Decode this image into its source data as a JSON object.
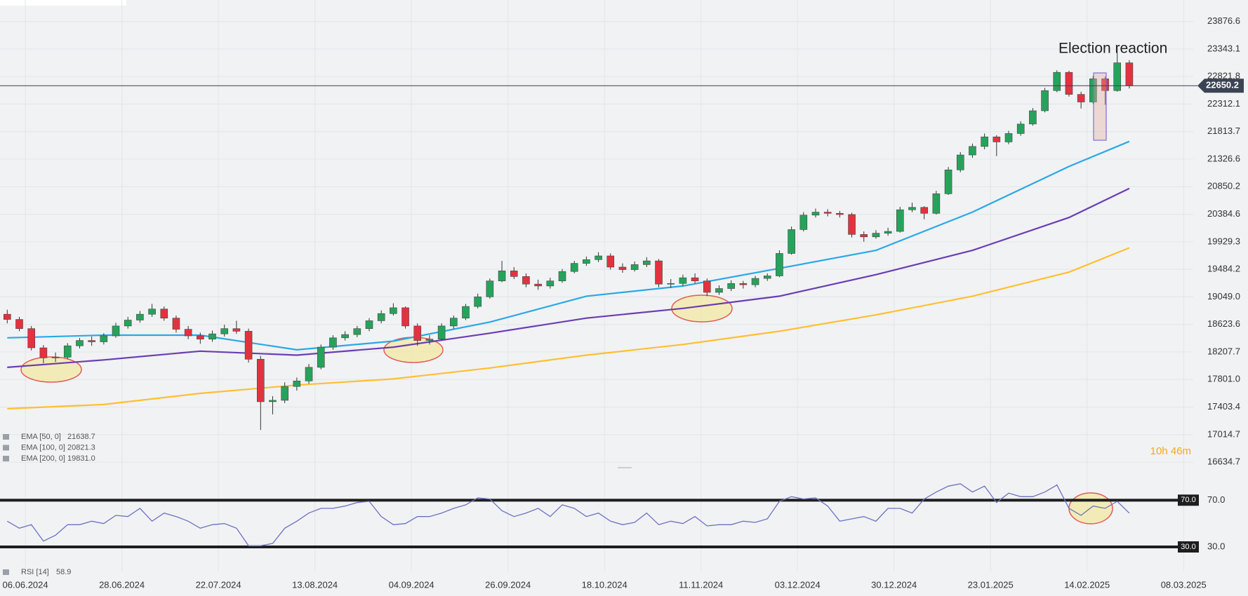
{
  "chart_data": {
    "type": "candlestick",
    "annotation": "Election reaction",
    "log_scale": true,
    "grid": true,
    "ylim": [
      16550,
      24300
    ],
    "yticks": [
      23876.6,
      23343.1,
      22821.8,
      22312.1,
      21813.7,
      21326.6,
      20850.2,
      20384.6,
      19929.3,
      19484.2,
      {
        "value": 19049,
        "label": "19049.0"
      },
      18623.6,
      18207.7,
      {
        "value": 17801,
        "label": "17801.0"
      },
      17403.4,
      17014.7,
      16634.7
    ],
    "xlim": [
      -0.6,
      98.3
    ],
    "xticks": [
      {
        "value": 1.5,
        "label": "06.06.2024"
      },
      {
        "value": 9.5,
        "label": "28.06.2024"
      },
      {
        "value": 17.5,
        "label": "22.07.2024"
      },
      {
        "value": 25.5,
        "label": "13.08.2024"
      },
      {
        "value": 33.5,
        "label": "04.09.2024"
      },
      {
        "value": 41.5,
        "label": "26.09.2024"
      },
      {
        "value": 49.5,
        "label": "18.10.2024"
      },
      {
        "value": 57.5,
        "label": "11.11.2024"
      },
      {
        "value": 65.5,
        "label": "03.12.2024"
      },
      {
        "value": 73.5,
        "label": "30.12.2024"
      },
      {
        "value": 81.5,
        "label": "23.01.2025"
      },
      {
        "value": 89.5,
        "label": "14.02.2025"
      },
      {
        "value": 97.5,
        "label": "08.03.2025"
      }
    ],
    "up_color": "#26a35b",
    "down_color": "#e3323f",
    "last_price": 22650.2,
    "ohlc": [
      [
        18780,
        18850,
        18640,
        18700
      ],
      [
        18700,
        18740,
        18520,
        18560
      ],
      [
        18560,
        18600,
        18230,
        18270
      ],
      [
        18270,
        18310,
        18040,
        18120
      ],
      [
        18120,
        18200,
        18060,
        18130
      ],
      [
        18130,
        18340,
        18100,
        18300
      ],
      [
        18300,
        18420,
        18260,
        18380
      ],
      [
        18380,
        18440,
        18300,
        18360
      ],
      [
        18360,
        18490,
        18320,
        18450
      ],
      [
        18450,
        18650,
        18420,
        18600
      ],
      [
        18600,
        18740,
        18560,
        18690
      ],
      [
        18690,
        18830,
        18650,
        18780
      ],
      [
        18780,
        18940,
        18740,
        18860
      ],
      [
        18860,
        18900,
        18680,
        18720
      ],
      [
        18720,
        18760,
        18500,
        18550
      ],
      [
        18550,
        18600,
        18400,
        18450
      ],
      [
        18450,
        18500,
        18330,
        18400
      ],
      [
        18400,
        18530,
        18360,
        18480
      ],
      [
        18480,
        18620,
        18440,
        18560
      ],
      [
        18560,
        18680,
        18480,
        18520
      ],
      [
        18520,
        18560,
        18050,
        18100
      ],
      [
        18100,
        18150,
        17080,
        17480
      ],
      [
        17480,
        17560,
        17300,
        17500
      ],
      [
        17500,
        17760,
        17460,
        17700
      ],
      [
        17700,
        17830,
        17640,
        17780
      ],
      [
        17780,
        18030,
        17740,
        17980
      ],
      [
        17980,
        18320,
        17950,
        18280
      ],
      [
        18280,
        18460,
        18240,
        18420
      ],
      [
        18420,
        18520,
        18380,
        18470
      ],
      [
        18470,
        18600,
        18430,
        18560
      ],
      [
        18560,
        18720,
        18520,
        18680
      ],
      [
        18680,
        18840,
        18640,
        18790
      ],
      [
        18790,
        18950,
        18760,
        18880
      ],
      [
        18880,
        18900,
        18560,
        18600
      ],
      [
        18600,
        18640,
        18300,
        18380
      ],
      [
        18380,
        18460,
        18320,
        18400
      ],
      [
        18400,
        18640,
        18380,
        18600
      ],
      [
        18600,
        18760,
        18560,
        18720
      ],
      [
        18720,
        18940,
        18690,
        18900
      ],
      [
        18900,
        19100,
        18870,
        19050
      ],
      [
        19050,
        19340,
        19020,
        19300
      ],
      [
        19300,
        19620,
        19280,
        19460
      ],
      [
        19460,
        19520,
        19330,
        19370
      ],
      [
        19370,
        19420,
        19200,
        19250
      ],
      [
        19250,
        19320,
        19160,
        19220
      ],
      [
        19220,
        19350,
        19180,
        19300
      ],
      [
        19300,
        19490,
        19270,
        19450
      ],
      [
        19450,
        19620,
        19420,
        19580
      ],
      [
        19580,
        19690,
        19540,
        19640
      ],
      [
        19640,
        19760,
        19600,
        19700
      ],
      [
        19700,
        19740,
        19480,
        19520
      ],
      [
        19520,
        19580,
        19430,
        19480
      ],
      [
        19480,
        19610,
        19450,
        19560
      ],
      [
        19560,
        19680,
        19520,
        19620
      ],
      [
        19620,
        19650,
        19200,
        19250
      ],
      [
        19250,
        19330,
        19190,
        19260
      ],
      [
        19260,
        19400,
        19220,
        19350
      ],
      [
        19350,
        19420,
        19260,
        19300
      ],
      [
        19300,
        19340,
        19060,
        19120
      ],
      [
        19120,
        19230,
        19080,
        19180
      ],
      [
        19180,
        19310,
        19140,
        19260
      ],
      [
        19260,
        19300,
        19180,
        19240
      ],
      [
        19240,
        19380,
        19200,
        19340
      ],
      [
        19340,
        19420,
        19300,
        19380
      ],
      [
        19380,
        19790,
        19360,
        19740
      ],
      [
        19740,
        20180,
        19720,
        20130
      ],
      [
        20130,
        20420,
        20100,
        20370
      ],
      [
        20370,
        20480,
        20330,
        20420
      ],
      [
        20420,
        20470,
        20350,
        20400
      ],
      [
        20400,
        20440,
        20330,
        20380
      ],
      [
        20380,
        20410,
        20000,
        20050
      ],
      [
        20050,
        20100,
        19930,
        20010
      ],
      [
        20010,
        20120,
        19980,
        20070
      ],
      [
        20070,
        20160,
        20030,
        20100
      ],
      [
        20100,
        20510,
        20080,
        20460
      ],
      [
        20460,
        20580,
        20420,
        20500
      ],
      [
        20500,
        20520,
        20300,
        20400
      ],
      [
        20400,
        20780,
        20380,
        20730
      ],
      [
        20730,
        21190,
        20710,
        21140
      ],
      [
        21140,
        21450,
        21100,
        21400
      ],
      [
        21400,
        21600,
        21350,
        21550
      ],
      [
        21550,
        21780,
        21500,
        21720
      ],
      [
        21720,
        21750,
        21380,
        21630
      ],
      [
        21630,
        21830,
        21590,
        21780
      ],
      [
        21780,
        22000,
        21740,
        21950
      ],
      [
        21950,
        22240,
        21920,
        22190
      ],
      [
        22190,
        22610,
        22160,
        22560
      ],
      [
        22560,
        22940,
        22530,
        22900
      ],
      [
        22900,
        22930,
        22450,
        22490
      ],
      [
        22490,
        22540,
        22230,
        22350
      ],
      [
        22350,
        22830,
        22320,
        22780
      ],
      [
        22780,
        22820,
        22300,
        22560
      ],
      [
        22560,
        23360,
        22540,
        23080
      ],
      [
        23080,
        23130,
        22600,
        22650.2
      ]
    ],
    "series": [
      {
        "name": "EMA [50, 0]",
        "value_label": "21638.7",
        "color": "#2aa8e6",
        "x": [
          0,
          8,
          16,
          24,
          32,
          40,
          48,
          56,
          64,
          72,
          80,
          88,
          93
        ],
        "values": [
          18420,
          18460,
          18460,
          18240,
          18370,
          18660,
          19060,
          19220,
          19500,
          19790,
          20420,
          21200,
          21638.7
        ]
      },
      {
        "name": "EMA [100, 0]",
        "value_label": "20821.3",
        "color": "#6a3db3",
        "x": [
          0,
          8,
          16,
          24,
          32,
          40,
          48,
          56,
          64,
          72,
          80,
          88,
          93
        ],
        "values": [
          17980,
          18090,
          18220,
          18160,
          18280,
          18490,
          18720,
          18870,
          19060,
          19400,
          19790,
          20330,
          20821.3
        ]
      },
      {
        "name": "EMA [200, 0]",
        "value_label": "19831.0",
        "color": "#ffbf2e",
        "x": [
          0,
          8,
          16,
          24,
          32,
          40,
          48,
          56,
          64,
          72,
          80,
          88,
          93
        ],
        "values": [
          17380,
          17440,
          17600,
          17720,
          17810,
          17970,
          18160,
          18320,
          18520,
          18770,
          19060,
          19440,
          19831
        ]
      }
    ],
    "rsi": {
      "name": "RSI [14]",
      "value_label": "58.9",
      "color": "#6b72c0",
      "ylim": [
        18,
        93
      ],
      "yticks": [
        {
          "value": 70,
          "label": "70.0"
        },
        {
          "value": 30,
          "label": "30.0"
        }
      ],
      "values": [
        52,
        46,
        49,
        35,
        40,
        49,
        49,
        52,
        50,
        57,
        56,
        63,
        52,
        59,
        56,
        52,
        46,
        49,
        50,
        46,
        31,
        31,
        33,
        46,
        52,
        59,
        63,
        63,
        65,
        68,
        69,
        56,
        49,
        50,
        56,
        56,
        59,
        63,
        66,
        72,
        71,
        61,
        56,
        59,
        63,
        56,
        66,
        63,
        56,
        59,
        52,
        49,
        51,
        59,
        49,
        52,
        50,
        56,
        48,
        49,
        49,
        52,
        51,
        54,
        69,
        73,
        71,
        72,
        65,
        52,
        54,
        56,
        52,
        63,
        63,
        59,
        71,
        77,
        82,
        84,
        77,
        82,
        68,
        76,
        73,
        73,
        77,
        83,
        63,
        57,
        65,
        63,
        69,
        58.9
      ]
    },
    "countdown": "10h 46m"
  }
}
